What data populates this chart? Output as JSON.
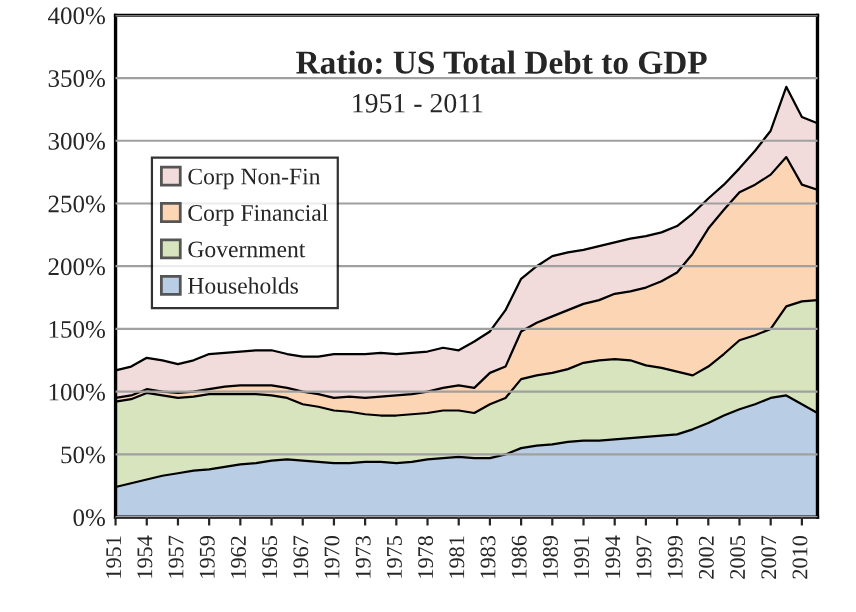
{
  "chart_data": {
    "type": "area",
    "stacked": true,
    "title": "Ratio: US Total Debt to GDP",
    "subtitle": "1951 - 2011",
    "categories": [
      "1951",
      null,
      "1954",
      null,
      "1957",
      null,
      "1959",
      null,
      "1962",
      null,
      "1965",
      null,
      "1967",
      null,
      "1970",
      null,
      "1973",
      null,
      "1975",
      null,
      "1978",
      null,
      "1981",
      null,
      "1983",
      null,
      "1986",
      null,
      "1989",
      null,
      "1991",
      null,
      "1994",
      null,
      "1997",
      null,
      "1999",
      null,
      "2002",
      null,
      "2005",
      null,
      "2007",
      null,
      "2010",
      null
    ],
    "series": [
      {
        "name": "Households",
        "color": "#b9cde5",
        "values": [
          24,
          27,
          30,
          33,
          35,
          37,
          38,
          40,
          42,
          43,
          45,
          46,
          45,
          44,
          43,
          43,
          44,
          44,
          43,
          44,
          46,
          47,
          48,
          47,
          47,
          50,
          55,
          57,
          58,
          60,
          61,
          61,
          62,
          63,
          64,
          65,
          66,
          70,
          75,
          81,
          86,
          90,
          95,
          97,
          90,
          83
        ]
      },
      {
        "name": "Government",
        "color": "#d7e4bd",
        "values": [
          68,
          67,
          69,
          64,
          60,
          59,
          60,
          58,
          56,
          55,
          52,
          49,
          45,
          44,
          42,
          41,
          38,
          37,
          38,
          38,
          37,
          38,
          37,
          36,
          43,
          45,
          55,
          56,
          57,
          58,
          62,
          64,
          64,
          62,
          57,
          54,
          50,
          43,
          45,
          49,
          55,
          55,
          55,
          71,
          82,
          90
        ]
      },
      {
        "name": "Corp Financial",
        "color": "#fcd5b5",
        "values": [
          3,
          3,
          3,
          3,
          4,
          4,
          4,
          6,
          7,
          7,
          8,
          8,
          10,
          10,
          10,
          12,
          13,
          15,
          16,
          16,
          17,
          18,
          20,
          20,
          25,
          25,
          38,
          42,
          45,
          47,
          47,
          48,
          52,
          55,
          62,
          69,
          79,
          97,
          110,
          115,
          118,
          120,
          123,
          119,
          93,
          88
        ]
      },
      {
        "name": "Corp Non-Fin",
        "color": "#f2dcdb",
        "values": [
          22,
          23,
          25,
          25,
          23,
          25,
          28,
          27,
          27,
          28,
          28,
          27,
          28,
          30,
          35,
          34,
          35,
          35,
          33,
          33,
          32,
          32,
          28,
          37,
          33,
          45,
          42,
          45,
          48,
          46,
          43,
          43,
          41,
          42,
          41,
          39,
          37,
          32,
          24,
          20,
          19,
          27,
          35,
          56,
          54,
          53
        ]
      }
    ],
    "ylim": [
      0,
      400
    ],
    "yticks": [
      {
        "value": 0,
        "label": "0%"
      },
      {
        "value": 50,
        "label": "50%"
      },
      {
        "value": 100,
        "label": "100%"
      },
      {
        "value": 150,
        "label": "150%"
      },
      {
        "value": 200,
        "label": "200%"
      },
      {
        "value": 250,
        "label": "250%"
      },
      {
        "value": 300,
        "label": "300%"
      },
      {
        "value": 350,
        "label": "350%"
      },
      {
        "value": 400,
        "label": "400%"
      }
    ],
    "grid": "y",
    "legend": "top left"
  }
}
